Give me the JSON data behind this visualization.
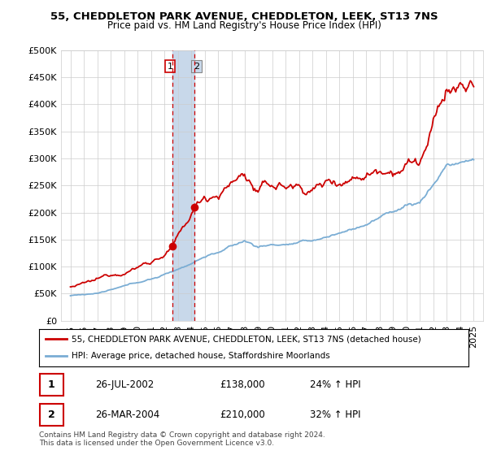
{
  "title": "55, CHEDDLETON PARK AVENUE, CHEDDLETON, LEEK, ST13 7NS",
  "subtitle": "Price paid vs. HM Land Registry's House Price Index (HPI)",
  "legend_line1": "55, CHEDDLETON PARK AVENUE, CHEDDLETON, LEEK, ST13 7NS (detached house)",
  "legend_line2": "HPI: Average price, detached house, Staffordshire Moorlands",
  "table_row1": [
    "1",
    "26-JUL-2002",
    "£138,000",
    "24% ↑ HPI"
  ],
  "table_row2": [
    "2",
    "26-MAR-2004",
    "£210,000",
    "32% ↑ HPI"
  ],
  "footnote": "Contains HM Land Registry data © Crown copyright and database right 2024.\nThis data is licensed under the Open Government Licence v3.0.",
  "sale1_year": 2002.57,
  "sale1_price": 138000,
  "sale2_year": 2004.23,
  "sale2_price": 210000,
  "red_color": "#cc0000",
  "blue_color": "#7aadd4",
  "vline_color": "#cc0000",
  "vshade_color": "#c8d8ea",
  "ylim": [
    0,
    500000
  ],
  "yticks": [
    0,
    50000,
    100000,
    150000,
    200000,
    250000,
    300000,
    350000,
    400000,
    450000,
    500000
  ],
  "year_start": 1995,
  "year_end": 2025
}
